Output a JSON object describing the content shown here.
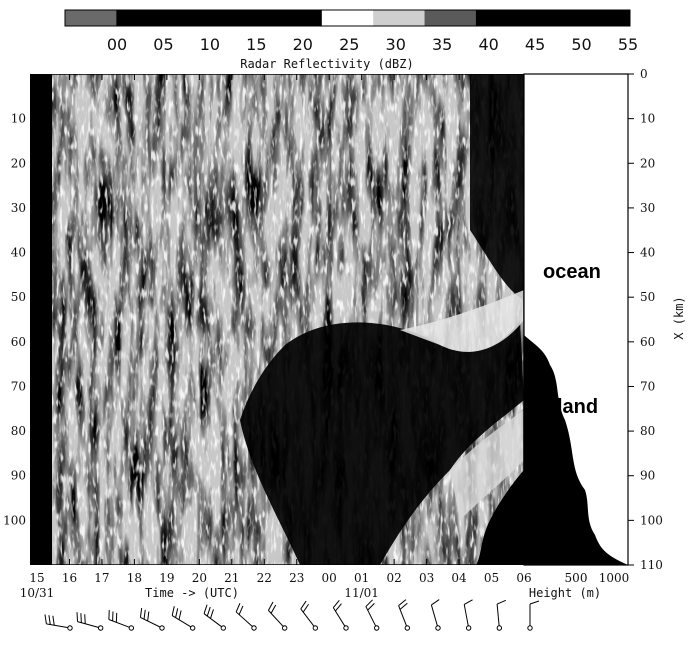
{
  "chart_data": {
    "type": "heatmap",
    "title": "",
    "colorbar": {
      "title": "Radar Reflectivity (dBZ)",
      "ticks": [
        "00",
        "05",
        "10",
        "15",
        "20",
        "25",
        "30",
        "35",
        "40",
        "45",
        "50",
        "55"
      ],
      "bins": [
        {
          "range": [
            0,
            5
          ],
          "shade": "#6a6a6a"
        },
        {
          "range": [
            5,
            10
          ],
          "shade": "#000000"
        },
        {
          "range": [
            10,
            15
          ],
          "shade": "#000000"
        },
        {
          "range": [
            15,
            20
          ],
          "shade": "#000000"
        },
        {
          "range": [
            20,
            25
          ],
          "shade": "#000000"
        },
        {
          "range": [
            25,
            30
          ],
          "shade": "#ffffff"
        },
        {
          "range": [
            30,
            35
          ],
          "shade": "#cfcfcf"
        },
        {
          "range": [
            35,
            40
          ],
          "shade": "#5a5a5a"
        },
        {
          "range": [
            40,
            45
          ],
          "shade": "#000000"
        },
        {
          "range": [
            45,
            50
          ],
          "shade": "#000000"
        },
        {
          "range": [
            50,
            55
          ],
          "shade": "#000000"
        }
      ]
    },
    "x_time": {
      "label": "Time -> (UTC)",
      "ticks": [
        "15",
        "16",
        "17",
        "18",
        "19",
        "20",
        "21",
        "22",
        "23",
        "00",
        "01",
        "02",
        "03",
        "04",
        "05",
        "06"
      ],
      "date_labels": [
        {
          "at": "15",
          "text": "10/31"
        },
        {
          "at": "01",
          "text": "11/01"
        }
      ],
      "range": [
        "10/31 15",
        "11/01 06"
      ]
    },
    "x_height": {
      "label": "Height (m)",
      "ticks": [
        "500",
        "1000"
      ],
      "range": [
        0,
        1000
      ]
    },
    "y": {
      "label": "X (km)",
      "ticks": [
        "0",
        "10",
        "20",
        "30",
        "40",
        "50",
        "60",
        "70",
        "80",
        "90",
        "100",
        "110"
      ],
      "range": [
        0,
        110
      ],
      "inverted": true
    },
    "annotations": [
      "ocean",
      "land"
    ],
    "wind_barbs_count": 16
  }
}
